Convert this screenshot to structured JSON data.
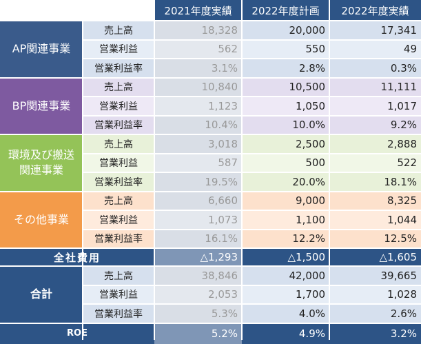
{
  "header": {
    "cols": [
      "2021年度実績",
      "2022年度計画",
      "2022年度実績"
    ]
  },
  "colors": {
    "header_bg": "#2d5486",
    "ap": "#3a5b8b",
    "bp": "#7e5aa0",
    "env": "#94c358",
    "other": "#f39b4a",
    "total_bg": "#2d5486",
    "roe_bg": "#2d5486"
  },
  "segments": [
    {
      "label": "AP関連事業",
      "color": "#3a5b8b",
      "light": "#d6e0ee",
      "lightB": "#e6edf6",
      "rows": [
        {
          "metric": "売上高",
          "values": [
            "18,328",
            "20,000",
            "17,341"
          ]
        },
        {
          "metric": "営業利益",
          "values": [
            "562",
            "550",
            "49"
          ]
        },
        {
          "metric": "営業利益率",
          "values": [
            "3.1%",
            "2.8%",
            "0.3%"
          ]
        }
      ]
    },
    {
      "label": "BP関連事業",
      "color": "#7e5aa0",
      "light": "#e3ddef",
      "lightB": "#eee9f6",
      "rows": [
        {
          "metric": "売上高",
          "values": [
            "10,840",
            "10,500",
            "11,111"
          ]
        },
        {
          "metric": "営業利益",
          "values": [
            "1,123",
            "1,050",
            "1,017"
          ]
        },
        {
          "metric": "営業利益率",
          "values": [
            "10.4%",
            "10.0%",
            "9.2%"
          ]
        }
      ]
    },
    {
      "label": "環境及び搬送\n関連事業",
      "color": "#94c358",
      "light": "#e8f1d9",
      "lightB": "#f1f7e7",
      "rows": [
        {
          "metric": "売上高",
          "values": [
            "3,018",
            "2,500",
            "2,888"
          ]
        },
        {
          "metric": "営業利益",
          "values": [
            "587",
            "500",
            "522"
          ]
        },
        {
          "metric": "営業利益率",
          "values": [
            "19.5%",
            "20.0%",
            "18.1%"
          ]
        }
      ]
    },
    {
      "label": "その他事業",
      "color": "#f39b4a",
      "light": "#fde1cc",
      "lightB": "#feebdd",
      "rows": [
        {
          "metric": "売上高",
          "values": [
            "6,660",
            "9,000",
            "8,325"
          ]
        },
        {
          "metric": "営業利益",
          "values": [
            "1,073",
            "1,100",
            "1,044"
          ]
        },
        {
          "metric": "営業利益率",
          "values": [
            "16.1%",
            "12.2%",
            "12.5%"
          ]
        }
      ]
    }
  ],
  "corporate_costs": {
    "label": "全社費用",
    "values": [
      "△1,293",
      "△1,500",
      "△1,605"
    ]
  },
  "total": {
    "label": "合計",
    "color": "#2d5486",
    "light": "#d6e0ee",
    "lightB": "#e6edf6",
    "rows": [
      {
        "metric": "売上高",
        "values": [
          "38,846",
          "42,000",
          "39,665"
        ]
      },
      {
        "metric": "営業利益",
        "values": [
          "2,053",
          "1,700",
          "1,028"
        ]
      },
      {
        "metric": "営業利益率",
        "values": [
          "5.3%",
          "4.0%",
          "2.6%"
        ]
      }
    ]
  },
  "roe": {
    "label": "ROE",
    "values": [
      "5.2%",
      "4.9%",
      "3.2%"
    ]
  }
}
